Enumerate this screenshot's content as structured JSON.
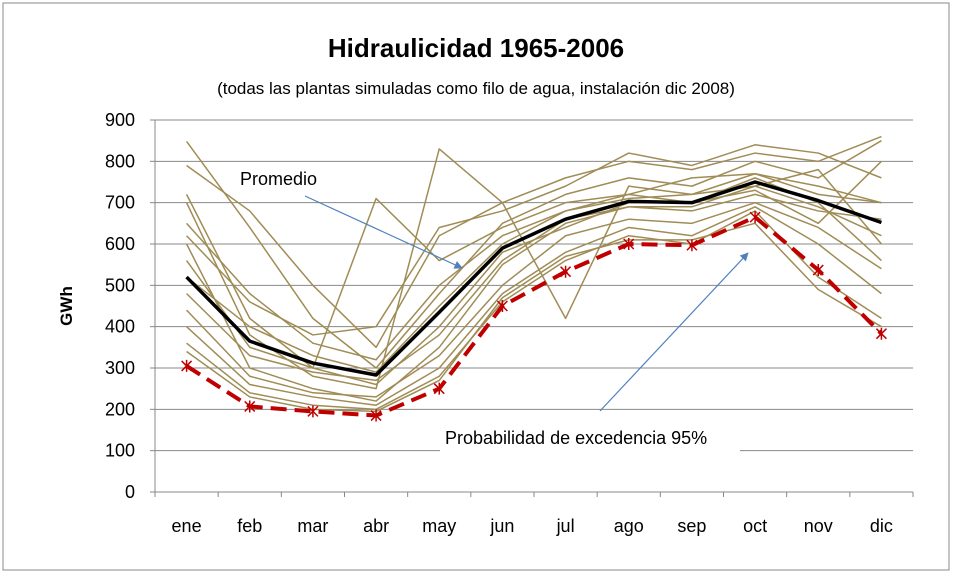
{
  "chart_data": {
    "type": "line",
    "title": "Hidraulicidad 1965-2006",
    "subtitle": "(todas las plantas simuladas como filo de agua, instalación dic 2008)",
    "y_label": "GWh",
    "categories": [
      "ene",
      "feb",
      "mar",
      "abr",
      "may",
      "jun",
      "jul",
      "ago",
      "sep",
      "oct",
      "nov",
      "dic"
    ],
    "ylim": [
      0,
      900
    ],
    "yticks": [
      0,
      100,
      200,
      300,
      400,
      500,
      600,
      700,
      800,
      900
    ],
    "grid": true,
    "annotations": [
      "Promedio",
      "Probabilidad de excedencia 95%"
    ],
    "series": [
      {
        "color": "#a08c55",
        "values": [
          848,
          640,
          420,
          300,
          480,
          650,
          720,
          760,
          740,
          800,
          760,
          850
        ]
      },
      {
        "color": "#a08c55",
        "values": [
          790,
          680,
          500,
          350,
          620,
          700,
          760,
          800,
          780,
          820,
          800,
          860
        ]
      },
      {
        "color": "#a08c55",
        "values": [
          720,
          420,
          300,
          710,
          560,
          640,
          700,
          720,
          760,
          770,
          740,
          700
        ]
      },
      {
        "color": "#a08c55",
        "values": [
          700,
          380,
          280,
          250,
          830,
          700,
          420,
          740,
          720,
          740,
          780,
          600
        ]
      },
      {
        "color": "#a08c55",
        "values": [
          650,
          480,
          360,
          320,
          500,
          620,
          680,
          720,
          700,
          730,
          650,
          800
        ]
      },
      {
        "color": "#a08c55",
        "values": [
          600,
          300,
          250,
          220,
          350,
          550,
          650,
          690,
          690,
          740,
          690,
          620
        ]
      },
      {
        "color": "#a08c55",
        "values": [
          560,
          350,
          300,
          260,
          400,
          580,
          640,
          700,
          700,
          760,
          700,
          560
        ]
      },
      {
        "color": "#a08c55",
        "values": [
          520,
          400,
          330,
          290,
          450,
          600,
          680,
          710,
          720,
          770,
          720,
          700
        ]
      },
      {
        "color": "#a08c55",
        "values": [
          480,
          330,
          290,
          270,
          380,
          560,
          660,
          690,
          680,
          720,
          680,
          660
        ]
      },
      {
        "color": "#a08c55",
        "values": [
          440,
          280,
          240,
          230,
          330,
          500,
          620,
          660,
          650,
          700,
          640,
          540
        ]
      },
      {
        "color": "#a08c55",
        "values": [
          400,
          260,
          230,
          210,
          300,
          480,
          580,
          640,
          620,
          690,
          600,
          480
        ]
      },
      {
        "color": "#a08c55",
        "values": [
          360,
          240,
          210,
          200,
          280,
          460,
          560,
          620,
          600,
          680,
          520,
          420
        ]
      },
      {
        "color": "#a08c55",
        "values": [
          340,
          230,
          200,
          195,
          270,
          470,
          570,
          610,
          610,
          650,
          490,
          400
        ]
      },
      {
        "color": "#a08c55",
        "values": [
          620,
          460,
          380,
          400,
          640,
          680,
          740,
          820,
          790,
          840,
          820,
          760
        ]
      },
      {
        "color": "#000000",
        "width": 3.5,
        "values": [
          520,
          365,
          312,
          283,
          435,
          590,
          660,
          703,
          700,
          750,
          705,
          652
        ]
      },
      {
        "color": "#c00000",
        "width": 4,
        "dash": true,
        "marker": true,
        "values": [
          305,
          207,
          195,
          185,
          250,
          450,
          533,
          600,
          597,
          665,
          537,
          383
        ]
      }
    ]
  }
}
